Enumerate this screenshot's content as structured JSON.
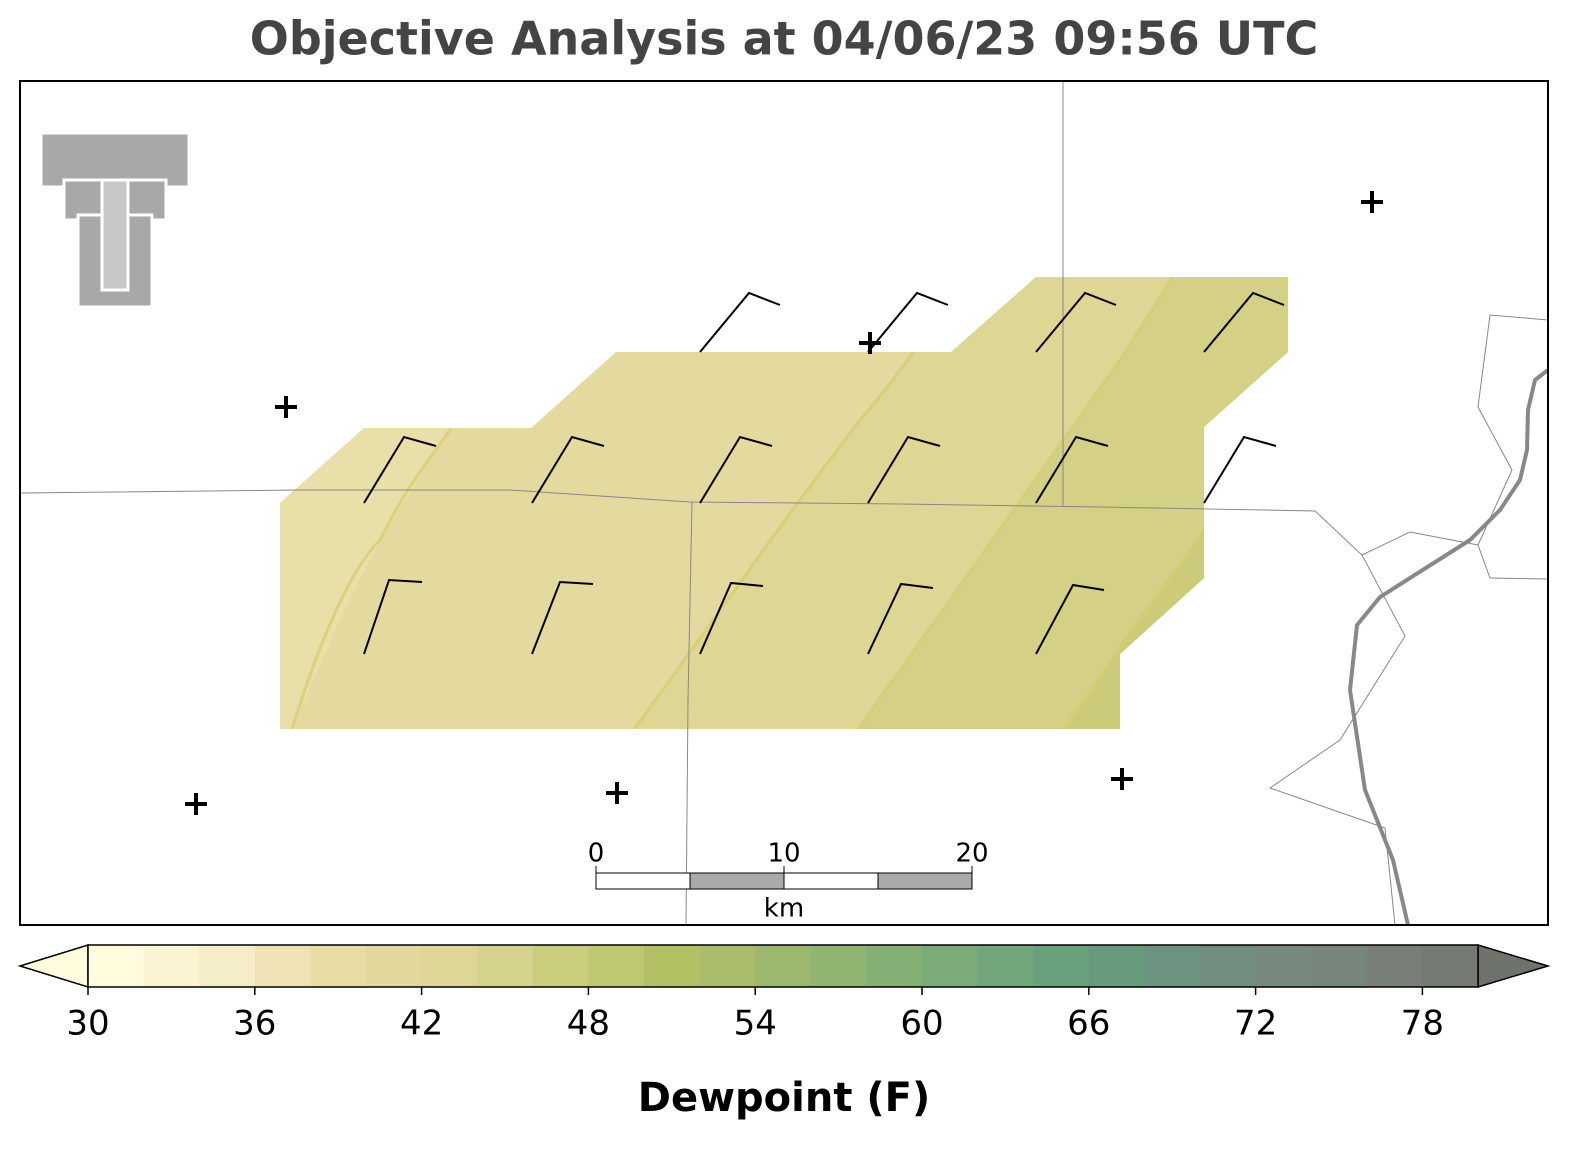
{
  "header": {
    "title": "Objective Analysis at 04/06/23 09:56 UTC"
  },
  "scale_bar": {
    "ticks": [
      0,
      10,
      20
    ],
    "unit": "km"
  },
  "colorbar": {
    "label": "Dewpoint (F)",
    "range": [
      30,
      80
    ],
    "ticks": [
      30,
      36,
      42,
      48,
      54,
      60,
      66,
      72,
      78
    ],
    "colors": [
      "#fffbdc",
      "#fbf4d3",
      "#f5ecc8",
      "#efe3b6",
      "#e8dca4",
      "#e3d79d",
      "#ddd696",
      "#d5d38b",
      "#cacd7c",
      "#bfc86e",
      "#b2c164",
      "#a8bc6a",
      "#9cb86e",
      "#90b471",
      "#84b075",
      "#7aab78",
      "#72a67b",
      "#6aa17d",
      "#679a7c",
      "#6c9280",
      "#718d7f",
      "#77887d",
      "#78857a",
      "#777f76",
      "#757a72"
    ],
    "under_color": "#fffbdc",
    "over_color": "#6e736b"
  }
}
